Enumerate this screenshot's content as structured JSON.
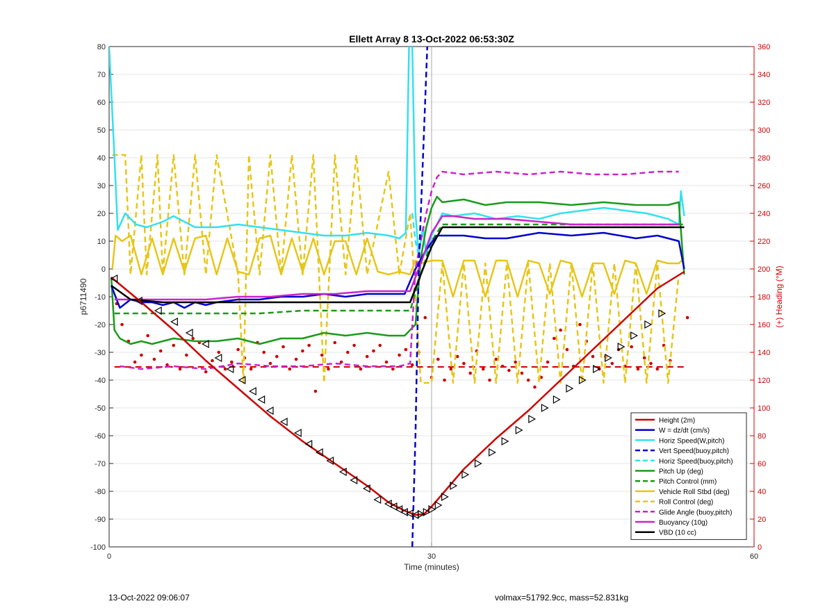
{
  "chart_data": {
    "type": "line",
    "title": "Ellett Array 8 13-Oct-2022 06:53:30Z",
    "xlabel": "Time (minutes)",
    "ylabel": "p6711490",
    "y2label": "(+) Heading (°M)",
    "xlim": [
      0,
      60
    ],
    "ylim": [
      -100,
      80
    ],
    "y2lim": [
      0,
      360
    ],
    "xticks": [
      0,
      30,
      60
    ],
    "yticks": [
      -100,
      -90,
      -80,
      -70,
      -60,
      -50,
      -40,
      -30,
      -20,
      -10,
      0,
      10,
      20,
      30,
      40,
      50,
      60,
      70,
      80
    ],
    "y2ticks": [
      0,
      20,
      40,
      60,
      80,
      100,
      120,
      140,
      160,
      180,
      200,
      220,
      240,
      260,
      280,
      300,
      320,
      340,
      360
    ],
    "grid": true,
    "legend_position": "bottom-right",
    "series": [
      {
        "name": "Height (2m)",
        "color": "#cc0000",
        "style": "solid",
        "x": [
          0.2,
          3,
          6,
          9,
          12,
          15,
          18,
          21,
          24,
          26,
          27.5,
          28.5,
          29.3,
          30,
          31,
          33,
          36,
          39,
          42,
          45,
          48,
          51,
          53.5
        ],
        "y": [
          -3,
          -12,
          -22,
          -33,
          -43,
          -53,
          -62,
          -70,
          -78,
          -84,
          -87,
          -88.5,
          -88.2,
          -85.5,
          -81,
          -72,
          -61,
          -51,
          -40,
          -29,
          -18,
          -7,
          -1
        ]
      },
      {
        "name": "W = dz/dt (cm/s)",
        "color": "#0000cc",
        "style": "solid",
        "x": [
          0.2,
          1,
          2,
          3,
          4,
          5,
          6,
          7,
          8,
          9,
          10,
          12,
          14,
          16,
          18,
          20,
          22,
          24,
          26,
          27.5,
          28.5,
          29.5,
          30.5,
          31.5,
          33,
          35,
          37,
          40,
          43,
          46,
          49,
          51,
          52,
          53,
          53.5
        ],
        "y": [
          -6,
          -14,
          -11,
          -12,
          -12,
          -13,
          -12,
          -14,
          -12,
          -13,
          -12,
          -11,
          -11,
          -10,
          -10,
          -9,
          -10,
          -9,
          -9,
          -9,
          0,
          7,
          12,
          12,
          12,
          11,
          11,
          13,
          12,
          13,
          11,
          12,
          11,
          10,
          0
        ]
      },
      {
        "name": "Horiz Speed(W,pitch)",
        "color": "#33e0f0",
        "style": "solid",
        "x": [
          0,
          0.5,
          0.8,
          1.5,
          2.5,
          3.5,
          5,
          6,
          7,
          8,
          10,
          12,
          14,
          16,
          18,
          20,
          22,
          24,
          26,
          27,
          27.6,
          27.9,
          28.2,
          28.5,
          28.8,
          29.2,
          29.5,
          30,
          31,
          32,
          34,
          36,
          38,
          40,
          42,
          44,
          46,
          48,
          50,
          52,
          53,
          53.2,
          53.5
        ],
        "y": [
          80,
          40,
          14,
          20,
          16,
          15,
          17,
          19,
          17,
          15,
          15,
          16,
          15,
          14,
          13,
          12,
          12,
          13,
          12,
          11,
          13,
          80,
          80,
          20,
          5,
          15,
          5,
          12,
          20,
          19,
          20,
          18,
          19,
          18,
          20,
          21,
          22,
          21,
          20,
          18,
          16,
          28,
          19
        ]
      },
      {
        "name": "Vert Speed(buoy,pitch)",
        "color": "#0000cc",
        "style": "dashed",
        "x": [
          28.2,
          28.5,
          28.8,
          29.2,
          29.6
        ],
        "y": [
          -100,
          -60,
          0,
          40,
          80
        ]
      },
      {
        "name": "Horiz Speed(buoy,pitch)",
        "color": "#33e0f0",
        "style": "dashed",
        "x": [
          28.2,
          28.5,
          28.8
        ],
        "y": [
          20,
          10,
          5
        ]
      },
      {
        "name": "Pitch Up (deg)",
        "color": "#1a9a1a",
        "style": "solid",
        "x": [
          0.2,
          0.5,
          1,
          2,
          3,
          4,
          5,
          6,
          8,
          10,
          12,
          14,
          16,
          18,
          20,
          22,
          24,
          26,
          27.5,
          28,
          28.5,
          29,
          29.5,
          30,
          30.5,
          31,
          33,
          35,
          37,
          40,
          43,
          46,
          49,
          52,
          53,
          53.5
        ],
        "y": [
          -3,
          -22,
          -25,
          -27,
          -26,
          -27,
          -26,
          -25,
          -26,
          -26,
          -25,
          -27,
          -25,
          -25,
          -23,
          -24,
          -23,
          -24,
          -24,
          -22,
          -20,
          4,
          15,
          22,
          26,
          24,
          25,
          23,
          24,
          24,
          23,
          24,
          23,
          23,
          24,
          -2
        ]
      },
      {
        "name": "Pitch Control (mm)",
        "color": "#1a9a1a",
        "style": "dashed",
        "x": [
          0.5,
          5,
          10,
          14,
          18,
          22,
          26,
          28,
          29,
          30,
          31,
          35,
          40,
          45,
          50,
          53.5
        ],
        "y": [
          -16,
          -16,
          -16,
          -16,
          -15,
          -15,
          -15,
          -15,
          -2,
          10,
          16,
          16,
          16,
          16,
          16,
          16
        ]
      },
      {
        "name": "Vehicle Roll Stbd (deg)",
        "color": "#e6c619",
        "style": "solid",
        "x": [
          0.3,
          0.6,
          1.2,
          2,
          3,
          4,
          5,
          6,
          7,
          8,
          9,
          10,
          11,
          12,
          13,
          14,
          15,
          16,
          17,
          18,
          19,
          20,
          21,
          22,
          23,
          24,
          25,
          26,
          27,
          28,
          28.5,
          29,
          30,
          31,
          32,
          33,
          34,
          35,
          36,
          37,
          38,
          39,
          40,
          41,
          42,
          43,
          44,
          45,
          46,
          47,
          48,
          49,
          50,
          51,
          52,
          53,
          53.5
        ],
        "y": [
          0,
          12,
          10,
          12,
          -2,
          11,
          -2,
          11,
          -1,
          11,
          12,
          -2,
          11,
          -1,
          -2,
          11,
          12,
          -2,
          11,
          -1,
          11,
          -2,
          10,
          10,
          -2,
          11,
          -1,
          -2,
          -1,
          -2,
          3,
          2,
          3,
          3,
          -10,
          3,
          3,
          -10,
          3,
          3,
          -10,
          3,
          2,
          -9,
          3,
          2,
          -10,
          2,
          2,
          -9,
          3,
          2,
          -9,
          3,
          2,
          2,
          4
        ]
      },
      {
        "name": "Roll Control (deg)",
        "color": "#e6c619",
        "style": "dashed",
        "x": [
          0.3,
          1.5,
          2,
          3,
          3.5,
          4.5,
          5,
          6,
          7,
          8,
          9,
          10,
          12,
          12.5,
          13,
          14,
          15,
          16,
          17,
          18,
          19,
          20,
          21,
          22,
          23,
          24,
          26,
          27,
          28,
          29,
          30,
          31,
          32,
          33,
          34,
          35,
          36,
          37,
          38,
          39,
          40,
          41,
          42,
          43,
          44,
          45,
          46,
          47,
          48,
          49,
          50,
          51,
          52,
          53
        ],
        "y": [
          41,
          41,
          -2,
          41,
          -2,
          41,
          -2,
          41,
          -2,
          41,
          -2,
          41,
          -2,
          -41,
          41,
          -2,
          41,
          -2,
          41,
          -2,
          41,
          -41,
          41,
          -2,
          41,
          -2,
          35,
          -2,
          20,
          -41,
          -41,
          2,
          -41,
          2,
          -41,
          2,
          -41,
          2,
          -41,
          2,
          -41,
          2,
          -41,
          2,
          -41,
          2,
          -41,
          2,
          -41,
          2,
          -41,
          2,
          -41,
          -2
        ]
      },
      {
        "name": "Glide Angle (buoy,pitch)",
        "color": "#cc22cc",
        "style": "dashed",
        "x": [
          1,
          3,
          6,
          9,
          12,
          15,
          18,
          21,
          24,
          27,
          28,
          28.5,
          29,
          29.5,
          30,
          30.5,
          31,
          33,
          36,
          39,
          42,
          45,
          48,
          51,
          53
        ],
        "y": [
          -35,
          -36,
          -35,
          -36,
          -34,
          -35,
          -35,
          -34,
          -35,
          -35,
          -34,
          0,
          10,
          20,
          28,
          33,
          35,
          34,
          35,
          34,
          35,
          34,
          34,
          35,
          35
        ]
      },
      {
        "name": "Buoyancy (10g)",
        "color": "#cc22cc",
        "style": "solid",
        "x": [
          0.5,
          3,
          6,
          9,
          12,
          15,
          18,
          21,
          24,
          27,
          28,
          28.5,
          29,
          30,
          31,
          32,
          34,
          37,
          40,
          43,
          46,
          49,
          52,
          53
        ],
        "y": [
          -11,
          -11,
          -11,
          -11,
          -10,
          -10,
          -9,
          -9,
          -8,
          -8,
          -8,
          -3,
          2,
          13,
          19,
          19,
          18,
          18,
          17,
          16,
          16,
          16,
          16,
          16
        ]
      },
      {
        "name": "VBD (10 cc)",
        "color": "#000000",
        "style": "solid",
        "x": [
          0.2,
          2,
          5,
          10,
          15,
          20,
          25,
          28,
          28.5,
          29,
          30,
          31,
          32,
          35,
          40,
          45,
          50,
          53.5
        ],
        "y": [
          -6,
          -11,
          -12,
          -12,
          -12,
          -12,
          -12,
          -12,
          -7,
          -2,
          8,
          15,
          15,
          15,
          15,
          15,
          15,
          15
        ]
      }
    ],
    "extra_series": [
      {
        "label": "heading-points",
        "color": "#cc0000",
        "axis": "right",
        "style": "dots",
        "x": [
          0.7,
          1.2,
          1.8,
          2.4,
          3.0,
          3.6,
          4.2,
          4.8,
          5.4,
          6.0,
          6.6,
          7.2,
          7.8,
          8.4,
          9.0,
          9.6,
          10.2,
          10.8,
          11.4,
          12.0,
          12.6,
          13.2,
          13.8,
          14.4,
          15.0,
          15.6,
          16.2,
          16.8,
          17.4,
          18.0,
          18.6,
          19.2,
          19.8,
          20.4,
          21.0,
          21.6,
          22.2,
          22.8,
          23.4,
          24.0,
          24.6,
          25.2,
          25.8,
          26.4,
          27.0,
          27.6,
          28.2,
          28.8,
          29.4,
          30.0,
          30.6,
          31.2,
          31.8,
          32.4,
          33.0,
          33.6,
          34.2,
          34.8,
          35.4,
          36.0,
          36.6,
          37.2,
          37.8,
          38.4,
          39.0,
          39.6,
          40.2,
          40.8,
          41.4,
          42.0,
          42.6,
          43.2,
          43.8,
          44.4,
          45.0,
          45.6,
          46.2,
          46.8,
          47.4,
          48.0,
          48.6,
          49.2,
          49.8,
          50.4,
          51.0,
          51.6,
          52.2,
          53.8
        ],
        "y": [
          175,
          160,
          148,
          133,
          138,
          152,
          135,
          141,
          131,
          145,
          128,
          138,
          150,
          147,
          126,
          134,
          140,
          128,
          133,
          142,
          136,
          128,
          147,
          140,
          132,
          137,
          144,
          128,
          135,
          141,
          145,
          112,
          138,
          128,
          147,
          133,
          140,
          145,
          128,
          137,
          141,
          145,
          133,
          128,
          138,
          142,
          131,
          140,
          165,
          122,
          135,
          120,
          128,
          137,
          132,
          125,
          141,
          128,
          120,
          135,
          130,
          127,
          133,
          125,
          120,
          115,
          122,
          133,
          150,
          156,
          142,
          130,
          160,
          148,
          137,
          128,
          137,
          132,
          142,
          130,
          144,
          128,
          136,
          132,
          128,
          145,
          134,
          165
        ]
      },
      {
        "label": "heading-desired",
        "color": "#cc0000",
        "axis": "right",
        "style": "dashed",
        "x": [
          0.5,
          53.5
        ],
        "y": [
          129.5,
          129.5
        ]
      },
      {
        "label": "vertical-marker-30min",
        "color": "#999999",
        "style": "solid",
        "x": [
          30,
          30
        ],
        "y": [
          -100,
          80
        ]
      }
    ],
    "markers": {
      "label": "depth-triangles",
      "color": "#000000",
      "x": [
        0.5,
        2.8,
        4.6,
        6.1,
        7.5,
        9.0,
        10.2,
        11.3,
        12.4,
        13.4,
        14.2,
        15.0,
        16.3,
        17.6,
        18.6,
        19.6,
        20.6,
        21.8,
        22.8,
        24.0,
        25.0,
        26.0,
        26.5,
        27.0,
        27.5,
        28.0,
        28.5,
        29.0,
        29.5,
        30.0,
        30.6,
        31.2,
        32.0,
        33.1,
        34.3,
        35.6,
        36.8,
        38.1,
        39.3,
        40.5,
        41.6,
        42.8,
        44.0,
        45.3,
        46.4,
        47.6,
        48.8,
        50.1,
        51.4
      ],
      "y": [
        -3.5,
        -11.5,
        -15,
        -19,
        -23,
        -27,
        -32,
        -36,
        -40,
        -44,
        -47,
        -51,
        -55,
        -59,
        -63,
        -66,
        -69,
        -73,
        -76,
        -79,
        -83,
        -84.5,
        -85.5,
        -86.5,
        -87.5,
        -88,
        -88.5,
        -88.2,
        -87.5,
        -86.5,
        -85,
        -82,
        -78,
        -74,
        -70,
        -66,
        -62,
        -58,
        -54,
        -50,
        -47,
        -43,
        -40,
        -36,
        -32,
        -28,
        -24,
        -20,
        -16
      ]
    }
  },
  "footer": {
    "timestamp": "13-Oct-2022 09:06:07",
    "meta": "volmax=51792.9cc, mass=52.831kg"
  }
}
